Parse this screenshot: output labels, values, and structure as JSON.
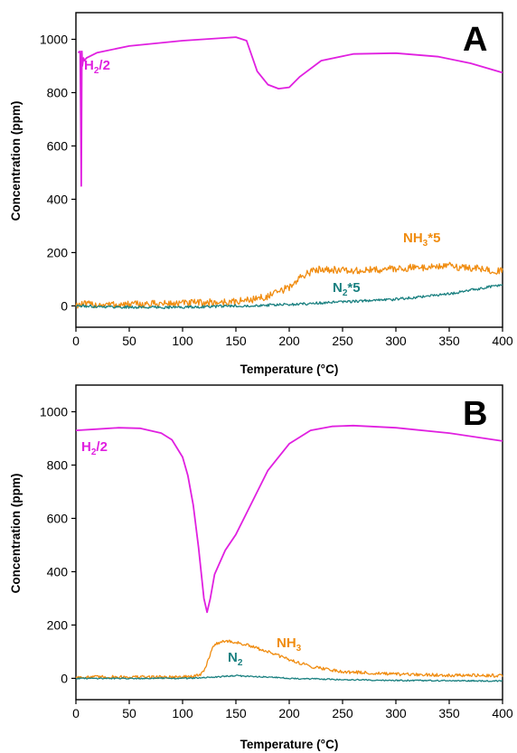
{
  "colors": {
    "h2": "#e020e0",
    "nh3": "#f08c10",
    "n2": "#1a8080",
    "axis": "#000000"
  },
  "chart_data": [
    {
      "type": "line",
      "panel_label": "A",
      "xlabel": "Temperature (°C)",
      "ylabel": "Concentration (ppm)",
      "xlim": [
        0,
        400
      ],
      "ylim": [
        -80,
        1100
      ],
      "xticks": [
        0,
        50,
        100,
        150,
        200,
        250,
        300,
        350,
        400
      ],
      "yticks": [
        0,
        200,
        400,
        600,
        800,
        1000
      ],
      "grid": false,
      "series": [
        {
          "name": "H2/2",
          "label_main": "H",
          "label_sub": "2",
          "label_rest": "/2",
          "color_key": "h2",
          "x": [
            2,
            4,
            5,
            5.6,
            6,
            7,
            8,
            10,
            20,
            50,
            100,
            150,
            160,
            170,
            180,
            190,
            200,
            210,
            230,
            260,
            300,
            340,
            370,
            400
          ],
          "y": [
            950,
            955,
            450,
            955,
            900,
            930,
            920,
            930,
            950,
            975,
            995,
            1008,
            995,
            880,
            830,
            815,
            820,
            860,
            920,
            945,
            948,
            935,
            910,
            875
          ]
        },
        {
          "name": "NH3*5",
          "label_main": "NH",
          "label_sub": "3",
          "label_rest": "*5",
          "color_key": "nh3",
          "x": [
            0,
            50,
            100,
            150,
            180,
            200,
            215,
            230,
            260,
            300,
            350,
            400
          ],
          "y": [
            5,
            5,
            10,
            15,
            35,
            70,
            120,
            140,
            130,
            140,
            150,
            130
          ]
        },
        {
          "name": "N2*5",
          "label_main": "N",
          "label_sub": "2",
          "label_rest": "*5",
          "color_key": "n2",
          "x": [
            0,
            50,
            100,
            150,
            200,
            250,
            300,
            350,
            400
          ],
          "y": [
            0,
            -5,
            -5,
            0,
            5,
            15,
            25,
            45,
            80
          ]
        }
      ]
    },
    {
      "type": "line",
      "panel_label": "B",
      "xlabel": "Temperature (°C)",
      "ylabel": "Concentration (ppm)",
      "xlim": [
        0,
        400
      ],
      "ylim": [
        -80,
        1100
      ],
      "xticks": [
        0,
        50,
        100,
        150,
        200,
        250,
        300,
        350,
        400
      ],
      "yticks": [
        0,
        200,
        400,
        600,
        800,
        1000
      ],
      "grid": false,
      "series": [
        {
          "name": "H2/2",
          "label_main": "H",
          "label_sub": "2",
          "label_rest": "/2",
          "color_key": "h2",
          "x": [
            0,
            20,
            40,
            60,
            80,
            90,
            100,
            105,
            110,
            115,
            120,
            123,
            126,
            130,
            140,
            150,
            160,
            170,
            180,
            200,
            220,
            240,
            260,
            300,
            350,
            400
          ],
          "y": [
            930,
            935,
            940,
            938,
            920,
            895,
            830,
            760,
            650,
            490,
            300,
            248,
            300,
            390,
            480,
            540,
            620,
            700,
            780,
            880,
            930,
            945,
            948,
            940,
            920,
            890
          ]
        },
        {
          "name": "NH3",
          "label_main": "NH",
          "label_sub": "3",
          "label_rest": "",
          "color_key": "nh3",
          "x": [
            0,
            50,
            100,
            115,
            120,
            125,
            130,
            140,
            150,
            160,
            180,
            200,
            220,
            250,
            300,
            350,
            400
          ],
          "y": [
            5,
            5,
            5,
            10,
            25,
            80,
            130,
            140,
            135,
            125,
            100,
            70,
            45,
            25,
            15,
            12,
            10
          ]
        },
        {
          "name": "N2",
          "label_main": "N",
          "label_sub": "2",
          "label_rest": "",
          "color_key": "n2",
          "x": [
            0,
            100,
            120,
            130,
            140,
            150,
            160,
            180,
            200,
            250,
            300,
            400
          ],
          "y": [
            0,
            0,
            2,
            5,
            8,
            10,
            8,
            5,
            0,
            -5,
            -8,
            -10
          ]
        }
      ]
    }
  ]
}
